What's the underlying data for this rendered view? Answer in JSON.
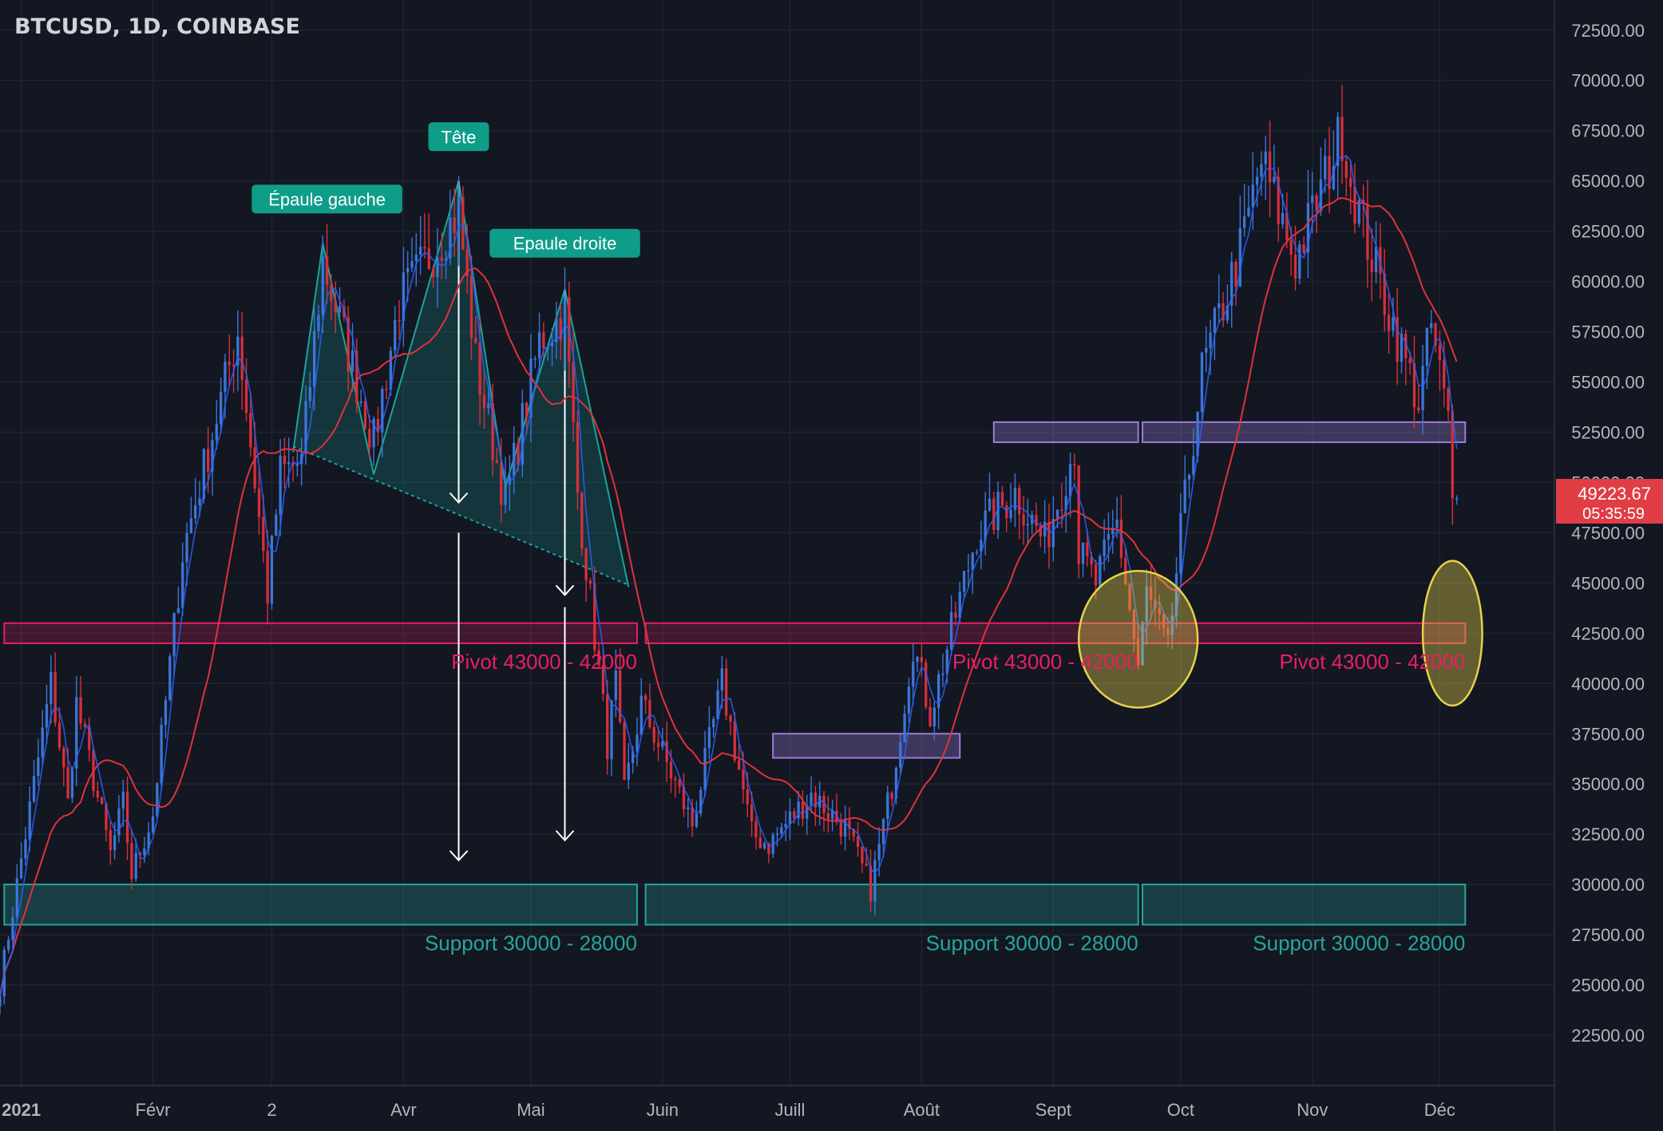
{
  "chart_data": {
    "type": "candlestick",
    "title": "BTCUSD, 1D, COINBASE",
    "ylim": [
      20000,
      74000
    ],
    "y_ticks": [
      "72500.00",
      "70000.00",
      "67500.00",
      "65000.00",
      "62500.00",
      "60000.00",
      "57500.00",
      "55000.00",
      "52500.00",
      "50000.00",
      "47500.00",
      "45000.00",
      "42500.00",
      "40000.00",
      "37500.00",
      "35000.00",
      "32500.00",
      "30000.00",
      "27500.00",
      "25000.00",
      "22500.00"
    ],
    "x_ticks": [
      {
        "label": "2021",
        "x": "2021-01-01",
        "bold": true
      },
      {
        "label": "Févr",
        "x": "2021-02-01"
      },
      {
        "label": "2",
        "x": "2021-03-01"
      },
      {
        "label": "Avr",
        "x": "2021-04-01"
      },
      {
        "label": "Mai",
        "x": "2021-05-01"
      },
      {
        "label": "Juin",
        "x": "2021-06-01"
      },
      {
        "label": "Juill",
        "x": "2021-07-01"
      },
      {
        "label": "Août",
        "x": "2021-08-01"
      },
      {
        "label": "Sept",
        "x": "2021-09-01"
      },
      {
        "label": "Oct",
        "x": "2021-10-01"
      },
      {
        "label": "Nov",
        "x": "2021-11-01"
      },
      {
        "label": "Déc",
        "x": "2021-12-01"
      }
    ],
    "x_start": "2020-12-27",
    "x_end": "2021-12-28",
    "price_key_points": [
      [
        "2020-12-27",
        25000
      ],
      [
        "2021-01-08",
        40000
      ],
      [
        "2021-01-12",
        34000
      ],
      [
        "2021-01-14",
        39000
      ],
      [
        "2021-01-22",
        31500
      ],
      [
        "2021-01-25",
        34000
      ],
      [
        "2021-01-27",
        30500
      ],
      [
        "2021-02-01",
        33500
      ],
      [
        "2021-02-08",
        46500
      ],
      [
        "2021-02-21",
        57500
      ],
      [
        "2021-02-28",
        44500
      ],
      [
        "2021-03-03",
        50500
      ],
      [
        "2021-03-08",
        51000
      ],
      [
        "2021-03-13",
        61000
      ],
      [
        "2021-03-25",
        52000
      ],
      [
        "2021-03-31",
        59000
      ],
      [
        "2021-04-14",
        63500
      ],
      [
        "2021-04-18",
        56000
      ],
      [
        "2021-04-25",
        49000
      ],
      [
        "2021-05-03",
        57000
      ],
      [
        "2021-05-09",
        58500
      ],
      [
        "2021-05-12",
        49500
      ],
      [
        "2021-05-19",
        37000
      ],
      [
        "2021-05-21",
        40000
      ],
      [
        "2021-05-23",
        34500
      ],
      [
        "2021-05-27",
        39000
      ],
      [
        "2021-06-08",
        33000
      ],
      [
        "2021-06-15",
        40000
      ],
      [
        "2021-06-22",
        32500
      ],
      [
        "2021-06-26",
        32000
      ],
      [
        "2021-07-06",
        34500
      ],
      [
        "2021-07-14",
        32800
      ],
      [
        "2021-07-20",
        29800
      ],
      [
        "2021-07-25",
        35000
      ],
      [
        "2021-07-30",
        42000
      ],
      [
        "2021-08-03",
        38500
      ],
      [
        "2021-08-14",
        47500
      ],
      [
        "2021-08-23",
        49500
      ],
      [
        "2021-08-30",
        47000
      ],
      [
        "2021-09-06",
        51800
      ],
      [
        "2021-09-07",
        46500
      ],
      [
        "2021-09-11",
        45000
      ],
      [
        "2021-09-16",
        48000
      ],
      [
        "2021-09-21",
        40800
      ],
      [
        "2021-09-23",
        44500
      ],
      [
        "2021-09-28",
        41500
      ],
      [
        "2021-10-01",
        47500
      ],
      [
        "2021-10-06",
        55500
      ],
      [
        "2021-10-15",
        61500
      ],
      [
        "2021-10-20",
        66000
      ],
      [
        "2021-10-28",
        61000
      ],
      [
        "2021-11-08",
        67500
      ],
      [
        "2021-11-10",
        65000
      ],
      [
        "2021-11-16",
        60500
      ],
      [
        "2021-11-26",
        54000
      ],
      [
        "2021-11-29",
        57800
      ],
      [
        "2021-12-03",
        53000
      ],
      [
        "2021-12-04",
        49000
      ],
      [
        "2021-12-05",
        49223
      ]
    ],
    "current_price": "49223.67",
    "countdown": "05:35:59",
    "zones": [
      {
        "kind": "pivot",
        "label": "Pivot 43000 - 42000",
        "from": "2020-12-28",
        "to": "2021-05-26",
        "low": 42000,
        "high": 43000
      },
      {
        "kind": "pivot",
        "label": "Pivot 43000 - 42000",
        "from": "2021-05-28",
        "to": "2021-09-21",
        "low": 42000,
        "high": 43000
      },
      {
        "kind": "pivot",
        "label": "Pivot 43000 - 42000",
        "from": "2021-09-22",
        "to": "2021-12-07",
        "low": 42000,
        "high": 43000
      },
      {
        "kind": "support",
        "label": "Support 30000 - 28000",
        "from": "2020-12-28",
        "to": "2021-05-26",
        "low": 28000,
        "high": 30000
      },
      {
        "kind": "support",
        "label": "Support 30000 - 28000",
        "from": "2021-05-28",
        "to": "2021-09-21",
        "low": 28000,
        "high": 30000
      },
      {
        "kind": "support",
        "label": "Support 30000 - 28000",
        "from": "2021-09-22",
        "to": "2021-12-07",
        "low": 28000,
        "high": 30000
      },
      {
        "kind": "resistance",
        "label": "",
        "from": "2021-08-18",
        "to": "2021-09-21",
        "low": 52000,
        "high": 53000
      },
      {
        "kind": "resistance",
        "label": "",
        "from": "2021-09-22",
        "to": "2021-12-07",
        "low": 52000,
        "high": 53000
      },
      {
        "kind": "resistance",
        "label": "",
        "from": "2021-06-27",
        "to": "2021-08-10",
        "low": 36300,
        "high": 37500
      }
    ],
    "pattern": {
      "labels": [
        {
          "text": "Épaule gauche",
          "x": "2021-03-14",
          "y": 64100
        },
        {
          "text": "Tête",
          "x": "2021-04-14",
          "y": 67200
        },
        {
          "text": "Epaule droite",
          "x": "2021-05-09",
          "y": 61900
        }
      ],
      "zigzag": [
        [
          "2021-03-06",
          51500
        ],
        [
          "2021-03-13",
          61900
        ],
        [
          "2021-03-25",
          50400
        ],
        [
          "2021-04-14",
          65000
        ],
        [
          "2021-04-25",
          49800
        ],
        [
          "2021-05-09",
          59600
        ],
        [
          "2021-05-24",
          44800
        ]
      ],
      "neckline": [
        [
          "2021-03-06",
          51800
        ],
        [
          "2021-05-24",
          44900
        ]
      ],
      "arrows": [
        {
          "x": "2021-04-14",
          "from": 65000,
          "to": 49000
        },
        {
          "x": "2021-04-14",
          "from": 47500,
          "to": 31200
        },
        {
          "x": "2021-05-09",
          "from": 59600,
          "to": 44400
        },
        {
          "x": "2021-05-09",
          "from": 43800,
          "to": 32200
        }
      ]
    },
    "ellipses": [
      {
        "x": "2021-09-21",
        "y": 42200,
        "rx_days": 14,
        "ry": 3400
      },
      {
        "x": "2021-12-04",
        "y": 42500,
        "rx_days": 7,
        "ry": 3600
      }
    ],
    "colors": {
      "up": "#3b76d8",
      "down": "#d5303b",
      "ma": "#e0323c",
      "ma_fast": "#2962ff",
      "pivot": "#e91e63",
      "support": "#26a69a",
      "resistance": "#9c7bd8",
      "pattern": "#1aa39a",
      "label_bg": "#0f9d8a",
      "ellipse": "#e8d24a",
      "price_tag": "#e03d45"
    }
  }
}
